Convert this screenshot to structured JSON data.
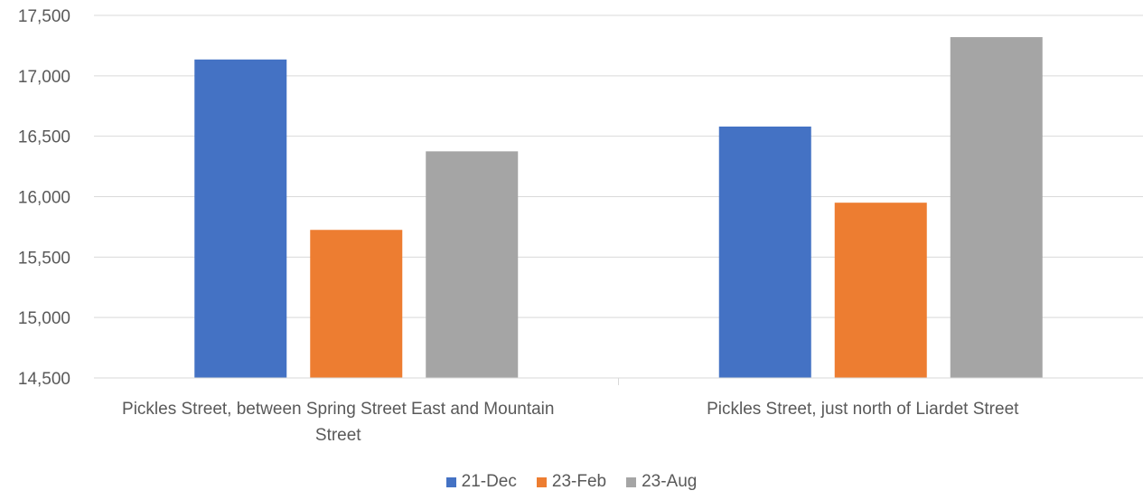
{
  "chart_data": {
    "type": "bar",
    "categories": [
      "Pickles Street, between Spring Street East and Mountain Street",
      "Pickles Street, just north of Liardet Street"
    ],
    "series": [
      {
        "name": "21-Dec",
        "color": "#4472C4",
        "values": [
          17135,
          16580
        ]
      },
      {
        "name": "23-Feb",
        "color": "#ED7D31",
        "values": [
          15725,
          15950
        ]
      },
      {
        "name": "23-Aug",
        "color": "#A5A5A5",
        "values": [
          16375,
          17320
        ]
      }
    ],
    "ylim": [
      14500,
      17500
    ],
    "yticks": [
      "14,500",
      "15,000",
      "15,500",
      "16,000",
      "16,500",
      "17,000",
      "17,500"
    ],
    "ytick_values": [
      14500,
      15000,
      15500,
      16000,
      16500,
      17000,
      17500
    ],
    "grid": true,
    "legend_position": "bottom"
  }
}
